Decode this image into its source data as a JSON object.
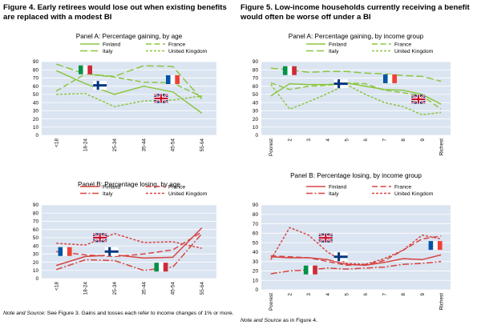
{
  "figure4": {
    "title": "Figure 4. Early retirees would lose out when existing benefits are replaced with a modest BI",
    "note_label": "Note and Source",
    "note_text": ": See Figure 3. Gains and losses each refer to income changes of 1% or more."
  },
  "figure5": {
    "title": "Figure 5. Low-income households currently receiving a benefit would often be worse off under a BI",
    "note_label": "Note and Source",
    "note_text": " as in Figure 4."
  },
  "colors": {
    "panel_bg": "#dbe4f1",
    "grid": "#ffffff",
    "gain": "#8cc63f",
    "loss": "#d64541"
  },
  "chart_data": [
    {
      "id": "fig4a",
      "type": "line",
      "title": "Panel A: Percentage gaining, by age",
      "categories": [
        "<18",
        "18-24",
        "25-34",
        "35-44",
        "45-54",
        "55-64"
      ],
      "yticks": [
        "0",
        "10",
        "20",
        "30",
        "40",
        "50",
        "60",
        "70",
        "80",
        "90"
      ],
      "ylim": [
        0,
        90
      ],
      "grid": true,
      "legend_position": "top",
      "series": [
        {
          "name": "Finland",
          "style": "solid",
          "values": [
            79,
            63,
            50,
            60,
            53,
            27
          ]
        },
        {
          "name": "France",
          "style": "dash",
          "values": [
            54,
            75,
            71,
            65,
            64,
            47
          ]
        },
        {
          "name": "Italy",
          "style": "longdash",
          "values": [
            87,
            75,
            72,
            85,
            84,
            44
          ]
        },
        {
          "name": "United Kingdom",
          "style": "shortdash",
          "values": [
            50,
            51,
            35,
            42,
            43,
            48
          ]
        }
      ],
      "flags": [
        {
          "country": "italy",
          "cat": 1,
          "value": 80
        },
        {
          "country": "finland",
          "cat": 1.5,
          "value": 61
        },
        {
          "country": "france",
          "cat": 4,
          "value": 68
        },
        {
          "country": "uk",
          "cat": 3.6,
          "value": 45
        }
      ]
    },
    {
      "id": "fig4b",
      "type": "line",
      "title": "Panel B: Percentage losing, by age",
      "categories": [
        "<18",
        "18-24",
        "25-34",
        "35-44",
        "45-54",
        "55-64"
      ],
      "yticks": [
        "0",
        "10",
        "20",
        "30",
        "40",
        "50",
        "60",
        "70",
        "80",
        "90"
      ],
      "ylim": [
        0,
        90
      ],
      "grid": true,
      "legend_position": "top",
      "series": [
        {
          "name": "Finland",
          "style": "solid",
          "values": [
            16,
            27,
            29,
            25,
            26,
            62
          ]
        },
        {
          "name": "France",
          "style": "dash",
          "values": [
            33,
            29,
            27,
            30,
            35,
            57
          ]
        },
        {
          "name": "Italy",
          "style": "dashdot",
          "values": [
            11,
            23,
            22,
            10,
            14,
            55
          ]
        },
        {
          "name": "United Kingdom",
          "style": "shortdash",
          "values": [
            43,
            41,
            55,
            44,
            45,
            37
          ]
        }
      ],
      "flags": [
        {
          "country": "uk",
          "cat": 1.5,
          "value": 50
        },
        {
          "country": "france",
          "cat": 0.3,
          "value": 33
        },
        {
          "country": "finland",
          "cat": 1.9,
          "value": 33
        },
        {
          "country": "italy",
          "cat": 3.6,
          "value": 14
        }
      ]
    },
    {
      "id": "fig5a",
      "type": "line",
      "title": "Panel A: Percentage gaining, by income group",
      "categories": [
        "Poorest",
        "2",
        "3",
        "4",
        "5",
        "6",
        "7",
        "8",
        "9",
        "Richest"
      ],
      "yticks": [
        "0",
        "10",
        "20",
        "30",
        "40",
        "50",
        "60",
        "70",
        "80",
        "90"
      ],
      "ylim": [
        0,
        90
      ],
      "grid": true,
      "legend_position": "top",
      "series": [
        {
          "name": "Finland",
          "style": "solid",
          "values": [
            48,
            63,
            62,
            62,
            64,
            60,
            56,
            55,
            50,
            38
          ]
        },
        {
          "name": "France",
          "style": "dash",
          "values": [
            64,
            56,
            60,
            61,
            64,
            63,
            55,
            52,
            48,
            32
          ]
        },
        {
          "name": "Italy",
          "style": "longdash",
          "values": [
            82,
            80,
            77,
            78,
            78,
            76,
            75,
            73,
            72,
            66
          ]
        },
        {
          "name": "United Kingdom",
          "style": "shortdash",
          "values": [
            62,
            32,
            41,
            51,
            62,
            50,
            40,
            35,
            25,
            28
          ]
        }
      ],
      "flags": [
        {
          "country": "italy",
          "cat": 1,
          "value": 79
        },
        {
          "country": "finland",
          "cat": 3.7,
          "value": 63
        },
        {
          "country": "france",
          "cat": 6.3,
          "value": 69
        },
        {
          "country": "uk",
          "cat": 7.8,
          "value": 44
        }
      ]
    },
    {
      "id": "fig5b",
      "type": "line",
      "title": "Panel B: Percentage losing, by income group",
      "categories": [
        "Poorest",
        "2",
        "3",
        "4",
        "5",
        "6",
        "7",
        "8",
        "9",
        "Richest"
      ],
      "yticks": [
        "0",
        "10",
        "20",
        "30",
        "40",
        "50",
        "60",
        "70",
        "80",
        "90"
      ],
      "ylim": [
        0,
        90
      ],
      "grid": true,
      "legend_position": "top",
      "series": [
        {
          "name": "Finland",
          "style": "solid",
          "values": [
            35,
            34,
            34,
            32,
            27,
            26,
            29,
            33,
            32,
            37
          ]
        },
        {
          "name": "France",
          "style": "dash",
          "values": [
            36,
            35,
            34,
            30,
            26,
            27,
            31,
            42,
            54,
            57
          ]
        },
        {
          "name": "Italy",
          "style": "dashdot",
          "values": [
            17,
            20,
            21,
            23,
            22,
            23,
            24,
            27,
            28,
            30
          ]
        },
        {
          "name": "United Kingdom",
          "style": "shortdash",
          "values": [
            32,
            66,
            58,
            40,
            28,
            27,
            33,
            42,
            58,
            54
          ]
        }
      ],
      "flags": [
        {
          "country": "uk",
          "cat": 2.9,
          "value": 55
        },
        {
          "country": "finland",
          "cat": 3.7,
          "value": 35
        },
        {
          "country": "italy",
          "cat": 2.1,
          "value": 21
        },
        {
          "country": "france",
          "cat": 8.7,
          "value": 47
        }
      ]
    }
  ]
}
